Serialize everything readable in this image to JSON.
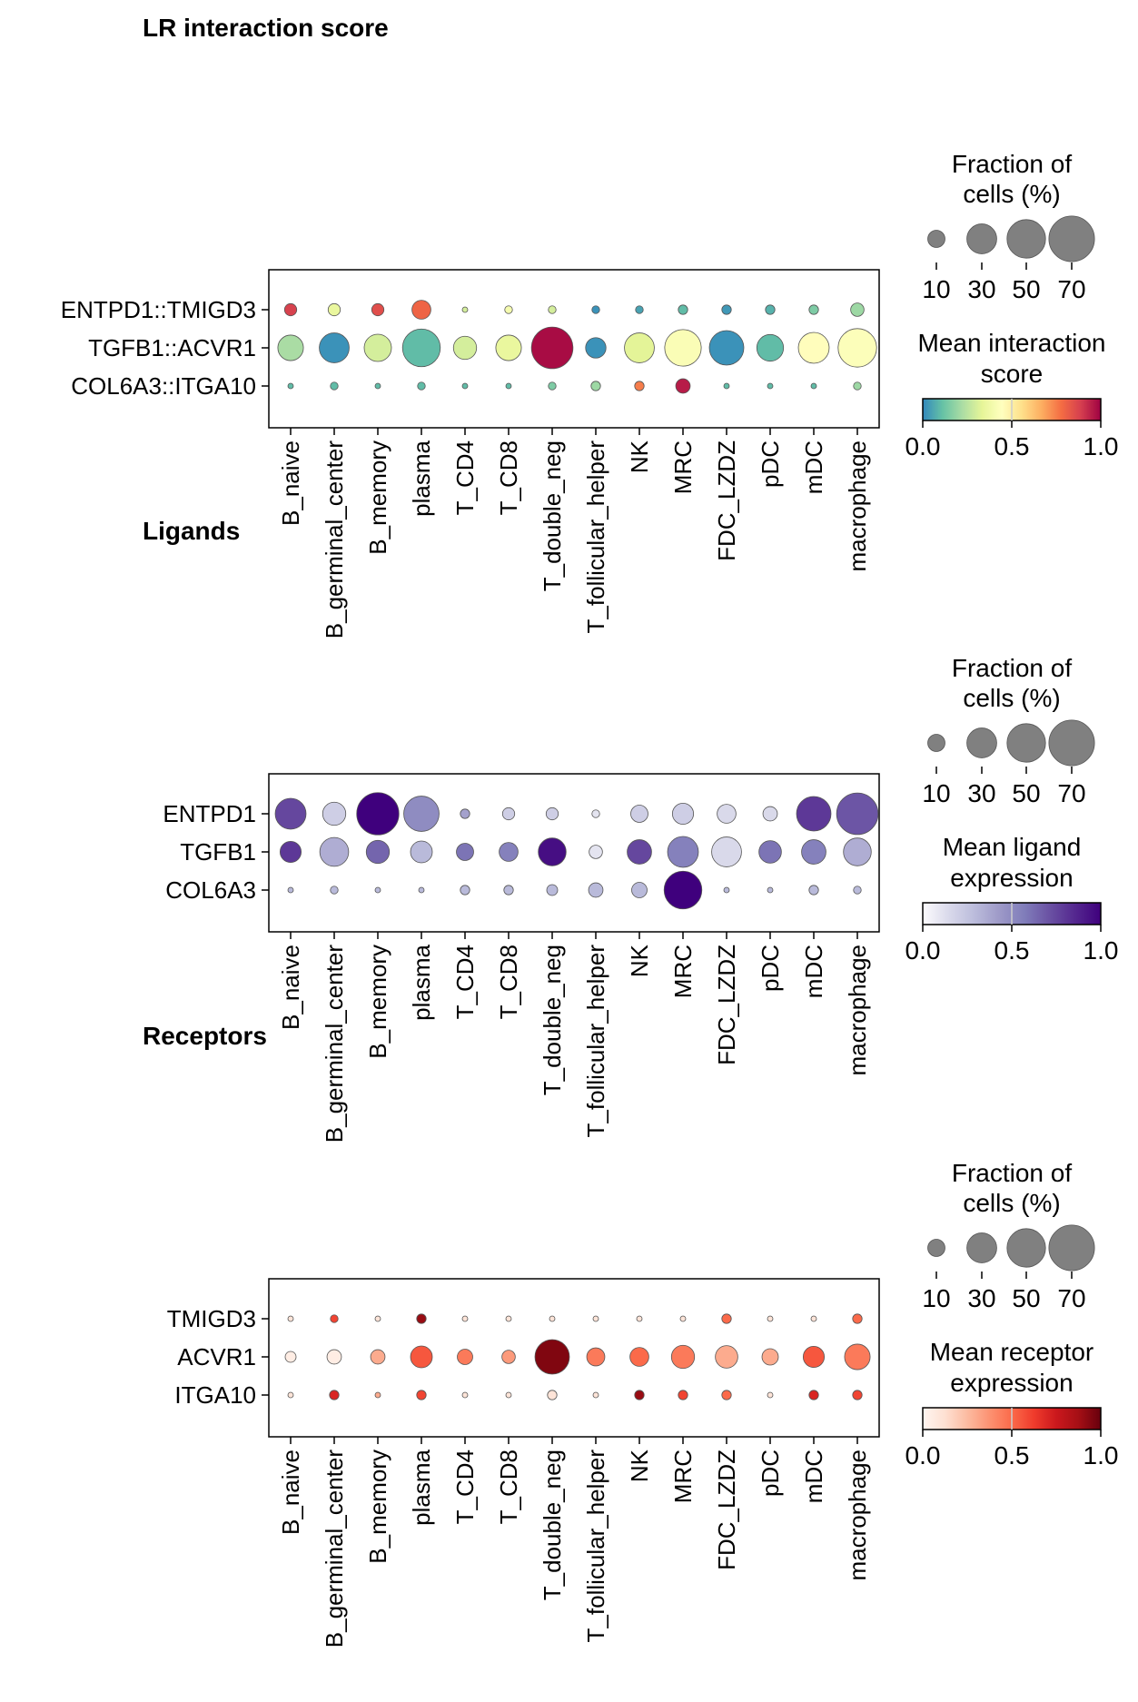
{
  "title": "LR interaction score",
  "categories": [
    "B_naive",
    "B_germinal_center",
    "B_memory",
    "plasma",
    "T_CD4",
    "T_CD8",
    "T_double_neg",
    "T_follicular_helper",
    "NK",
    "MRC",
    "FDC_LZDZ",
    "pDC",
    "mDC",
    "macrophage"
  ],
  "size_legend": {
    "title_line1": "Fraction of",
    "title_line2": "cells (%)",
    "values": [
      10,
      30,
      50,
      70
    ],
    "labels": [
      "10",
      "30",
      "50",
      "70"
    ]
  },
  "chart_data": [
    {
      "type": "dotplot",
      "id": "interaction",
      "panel_label": "",
      "rows": [
        "ENTPD1::TMIGD3",
        "TGFB1::ACVR1",
        "COL6A3::ITGA10"
      ],
      "colorbar": {
        "title_line1": "Mean interaction",
        "title_line2": "score",
        "colormap": "Spectral_r",
        "stops": [
          "#3288bd",
          "#66c2a5",
          "#abdda4",
          "#e6f598",
          "#ffffbf",
          "#fee08b",
          "#fdae61",
          "#f46d43",
          "#d53e4f",
          "#9e0142"
        ],
        "ticks": [
          "0.0",
          "0.5",
          "1.0"
        ],
        "range": [
          0,
          1
        ]
      },
      "fraction_pct": [
        [
          5,
          5,
          5,
          12,
          1,
          2,
          2,
          2,
          2,
          3,
          3,
          3,
          3,
          6
        ],
        [
          22,
          30,
          25,
          48,
          18,
          22,
          58,
          14,
          30,
          45,
          40,
          24,
          32,
          50
        ],
        [
          1,
          2,
          1,
          2,
          1,
          1,
          2,
          3,
          3,
          7,
          1,
          1,
          1,
          2
        ]
      ],
      "mean": [
        [
          0.88,
          0.35,
          0.85,
          0.8,
          0.3,
          0.4,
          0.3,
          0.02,
          0.05,
          0.1,
          0.03,
          0.08,
          0.15,
          0.2
        ],
        [
          0.22,
          0.02,
          0.3,
          0.1,
          0.3,
          0.35,
          0.98,
          0.02,
          0.33,
          0.42,
          0.02,
          0.1,
          0.45,
          0.43
        ],
        [
          0.1,
          0.1,
          0.1,
          0.1,
          0.1,
          0.1,
          0.15,
          0.2,
          0.75,
          0.95,
          0.1,
          0.1,
          0.1,
          0.2
        ]
      ]
    },
    {
      "type": "dotplot",
      "id": "ligands",
      "panel_label": "Ligands",
      "rows": [
        "ENTPD1",
        "TGFB1",
        "COL6A3"
      ],
      "colorbar": {
        "title_line1": "Mean ligand",
        "title_line2": "expression",
        "colormap": "Purples",
        "stops": [
          "#fcfbfd",
          "#dadaeb",
          "#bcbddc",
          "#9e9ac8",
          "#807dba",
          "#6a51a3",
          "#54278f",
          "#3f007d"
        ],
        "ticks": [
          "0.0",
          "0.5",
          "1.0"
        ],
        "range": [
          0,
          1
        ]
      },
      "fraction_pct": [
        [
          32,
          18,
          60,
          42,
          3,
          5,
          5,
          2,
          10,
          15,
          12,
          7,
          40,
          58
        ],
        [
          15,
          28,
          18,
          16,
          10,
          12,
          26,
          6,
          20,
          32,
          30,
          17,
          20,
          26
        ],
        [
          1,
          2,
          1,
          1,
          3,
          3,
          4,
          7,
          8,
          48,
          1,
          1,
          3,
          2
        ]
      ],
      "mean": [
        [
          0.75,
          0.2,
          1.0,
          0.5,
          0.4,
          0.2,
          0.2,
          0.1,
          0.2,
          0.2,
          0.15,
          0.15,
          0.8,
          0.7
        ],
        [
          0.8,
          0.35,
          0.65,
          0.3,
          0.6,
          0.55,
          0.95,
          0.1,
          0.75,
          0.55,
          0.15,
          0.6,
          0.55,
          0.35
        ],
        [
          0.3,
          0.3,
          0.3,
          0.3,
          0.3,
          0.3,
          0.3,
          0.3,
          0.3,
          1.0,
          0.3,
          0.3,
          0.3,
          0.3
        ]
      ]
    },
    {
      "type": "dotplot",
      "id": "receptors",
      "panel_label": "Receptors",
      "rows": [
        "TMIGD3",
        "ACVR1",
        "ITGA10"
      ],
      "colorbar": {
        "title_line1": "Mean receptor",
        "title_line2": "expression",
        "colormap": "Reds",
        "stops": [
          "#fff5f0",
          "#fee0d2",
          "#fcbba1",
          "#fc9272",
          "#fb6a4a",
          "#ef3b2c",
          "#cb181d",
          "#a50f15",
          "#67000d"
        ],
        "ticks": [
          "0.0",
          "0.5",
          "1.0"
        ],
        "range": [
          0,
          1
        ]
      },
      "fraction_pct": [
        [
          1,
          2,
          1,
          3,
          1,
          1,
          1,
          1,
          1,
          1,
          3,
          1,
          1,
          3
        ],
        [
          4,
          7,
          7,
          16,
          8,
          6,
          40,
          11,
          12,
          18,
          17,
          9,
          15,
          22
        ],
        [
          1,
          3,
          1,
          3,
          1,
          1,
          3,
          1,
          3,
          3,
          3,
          1,
          3,
          3
        ]
      ],
      "mean": [
        [
          0.1,
          0.6,
          0.1,
          0.9,
          0.1,
          0.1,
          0.1,
          0.1,
          0.1,
          0.1,
          0.5,
          0.1,
          0.1,
          0.5
        ],
        [
          0.05,
          0.05,
          0.3,
          0.55,
          0.45,
          0.35,
          0.95,
          0.45,
          0.5,
          0.45,
          0.3,
          0.3,
          0.55,
          0.45
        ],
        [
          0.1,
          0.7,
          0.3,
          0.6,
          0.1,
          0.1,
          0.1,
          0.1,
          0.9,
          0.6,
          0.5,
          0.1,
          0.7,
          0.6
        ]
      ]
    }
  ]
}
